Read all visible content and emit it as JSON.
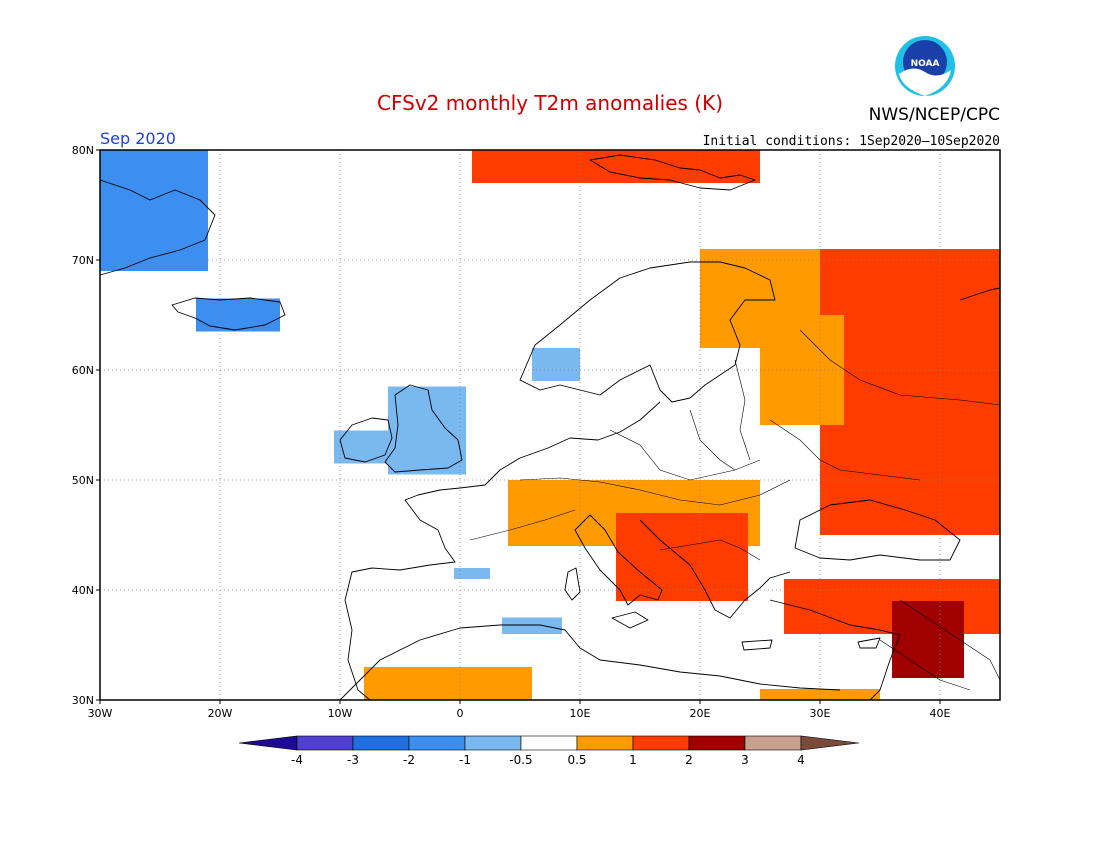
{
  "header": {
    "title": "CFSv2 monthly T2m anomalies (K)",
    "agency": "NWS/NCEP/CPC",
    "logo_text": "NOAA",
    "month": "Sep 2020",
    "initial_conditions": "Initial conditions: 1Sep2020–10Sep2020"
  },
  "map": {
    "region": "Europe",
    "lon_range": [
      -30,
      45
    ],
    "lat_range": [
      30,
      80
    ],
    "lon_ticks": [
      {
        "value": -30,
        "label": "30W"
      },
      {
        "value": -20,
        "label": "20W"
      },
      {
        "value": -10,
        "label": "10W"
      },
      {
        "value": 0,
        "label": "0"
      },
      {
        "value": 10,
        "label": "10E"
      },
      {
        "value": 20,
        "label": "20E"
      },
      {
        "value": 30,
        "label": "30E"
      },
      {
        "value": 40,
        "label": "40E"
      }
    ],
    "lat_ticks": [
      {
        "value": 80,
        "label": "80N"
      },
      {
        "value": 70,
        "label": "70N"
      },
      {
        "value": 60,
        "label": "60N"
      },
      {
        "value": 50,
        "label": "50N"
      },
      {
        "value": 40,
        "label": "40N"
      },
      {
        "value": 30,
        "label": "30N"
      }
    ],
    "grid": true,
    "anomaly_regions": [
      {
        "name": "Greenland",
        "level": -1.5,
        "lon": [
          -30,
          -21
        ],
        "lat": [
          69,
          80
        ]
      },
      {
        "name": "Iceland",
        "level": -1.5,
        "lon": [
          -22,
          -15
        ],
        "lat": [
          63.5,
          66.5
        ]
      },
      {
        "name": "Ireland",
        "level": -0.7,
        "lon": [
          -10.5,
          -6
        ],
        "lat": [
          51.5,
          54.5
        ]
      },
      {
        "name": "Great Britain",
        "level": -0.7,
        "lon": [
          -6,
          0.5
        ],
        "lat": [
          50.5,
          58.5
        ]
      },
      {
        "name": "Norway",
        "level": -0.7,
        "lon": [
          6,
          10
        ],
        "lat": [
          59,
          62
        ]
      },
      {
        "name": "North Africa",
        "level": -0.7,
        "lon": [
          3.5,
          8.5
        ],
        "lat": [
          36,
          37.5
        ]
      },
      {
        "name": "Iberia",
        "level": -0.7,
        "lon": [
          -0.5,
          2.5
        ],
        "lat": [
          41,
          42
        ]
      },
      {
        "name": "Svalbard",
        "level": 1.5,
        "lon": [
          1,
          25
        ],
        "lat": [
          77,
          80
        ]
      },
      {
        "name": "Scandinavia north",
        "level": 0.7,
        "lon": [
          20,
          30
        ],
        "lat": [
          62,
          71
        ]
      },
      {
        "name": "Western Russia",
        "level": 1.5,
        "lon": [
          30,
          45
        ],
        "lat": [
          45,
          71
        ]
      },
      {
        "name": "Finland",
        "level": 0.7,
        "lon": [
          25,
          32
        ],
        "lat": [
          55,
          65
        ]
      },
      {
        "name": "Central Europe",
        "level": 0.7,
        "lon": [
          4,
          25
        ],
        "lat": [
          44,
          50
        ]
      },
      {
        "name": "Balkans",
        "level": 1.5,
        "lon": [
          13,
          24
        ],
        "lat": [
          39,
          47
        ]
      },
      {
        "name": "Turkey",
        "level": 1.5,
        "lon": [
          27,
          45
        ],
        "lat": [
          36,
          41
        ]
      },
      {
        "name": "Middle East",
        "level": 2.5,
        "lon": [
          36,
          42
        ],
        "lat": [
          32,
          39
        ]
      },
      {
        "name": "Sahara",
        "level": 0.7,
        "lon": [
          -8,
          6
        ],
        "lat": [
          30,
          33
        ]
      },
      {
        "name": "Egypt",
        "level": 0.7,
        "lon": [
          25,
          35
        ],
        "lat": [
          30,
          31
        ]
      }
    ]
  },
  "colorbar": {
    "levels": [
      "-4",
      "-3",
      "-2",
      "-1",
      "-0.5",
      "0.5",
      "1",
      "2",
      "3",
      "4"
    ],
    "colors": [
      "#1e0a96",
      "#5040d0",
      "#1f6fe0",
      "#3c8ef0",
      "#7ab8f0",
      "#ffffff",
      "#ff9a00",
      "#ff3c00",
      "#a00000",
      "#c8a090",
      "#7a4a3a"
    ]
  },
  "colors": {
    "neg_strong": "#3c8ef0",
    "neg_weak": "#7ab8f0",
    "pos_weak": "#ff9a00",
    "pos_mid": "#ff3c00",
    "pos_strong": "#a00000"
  }
}
